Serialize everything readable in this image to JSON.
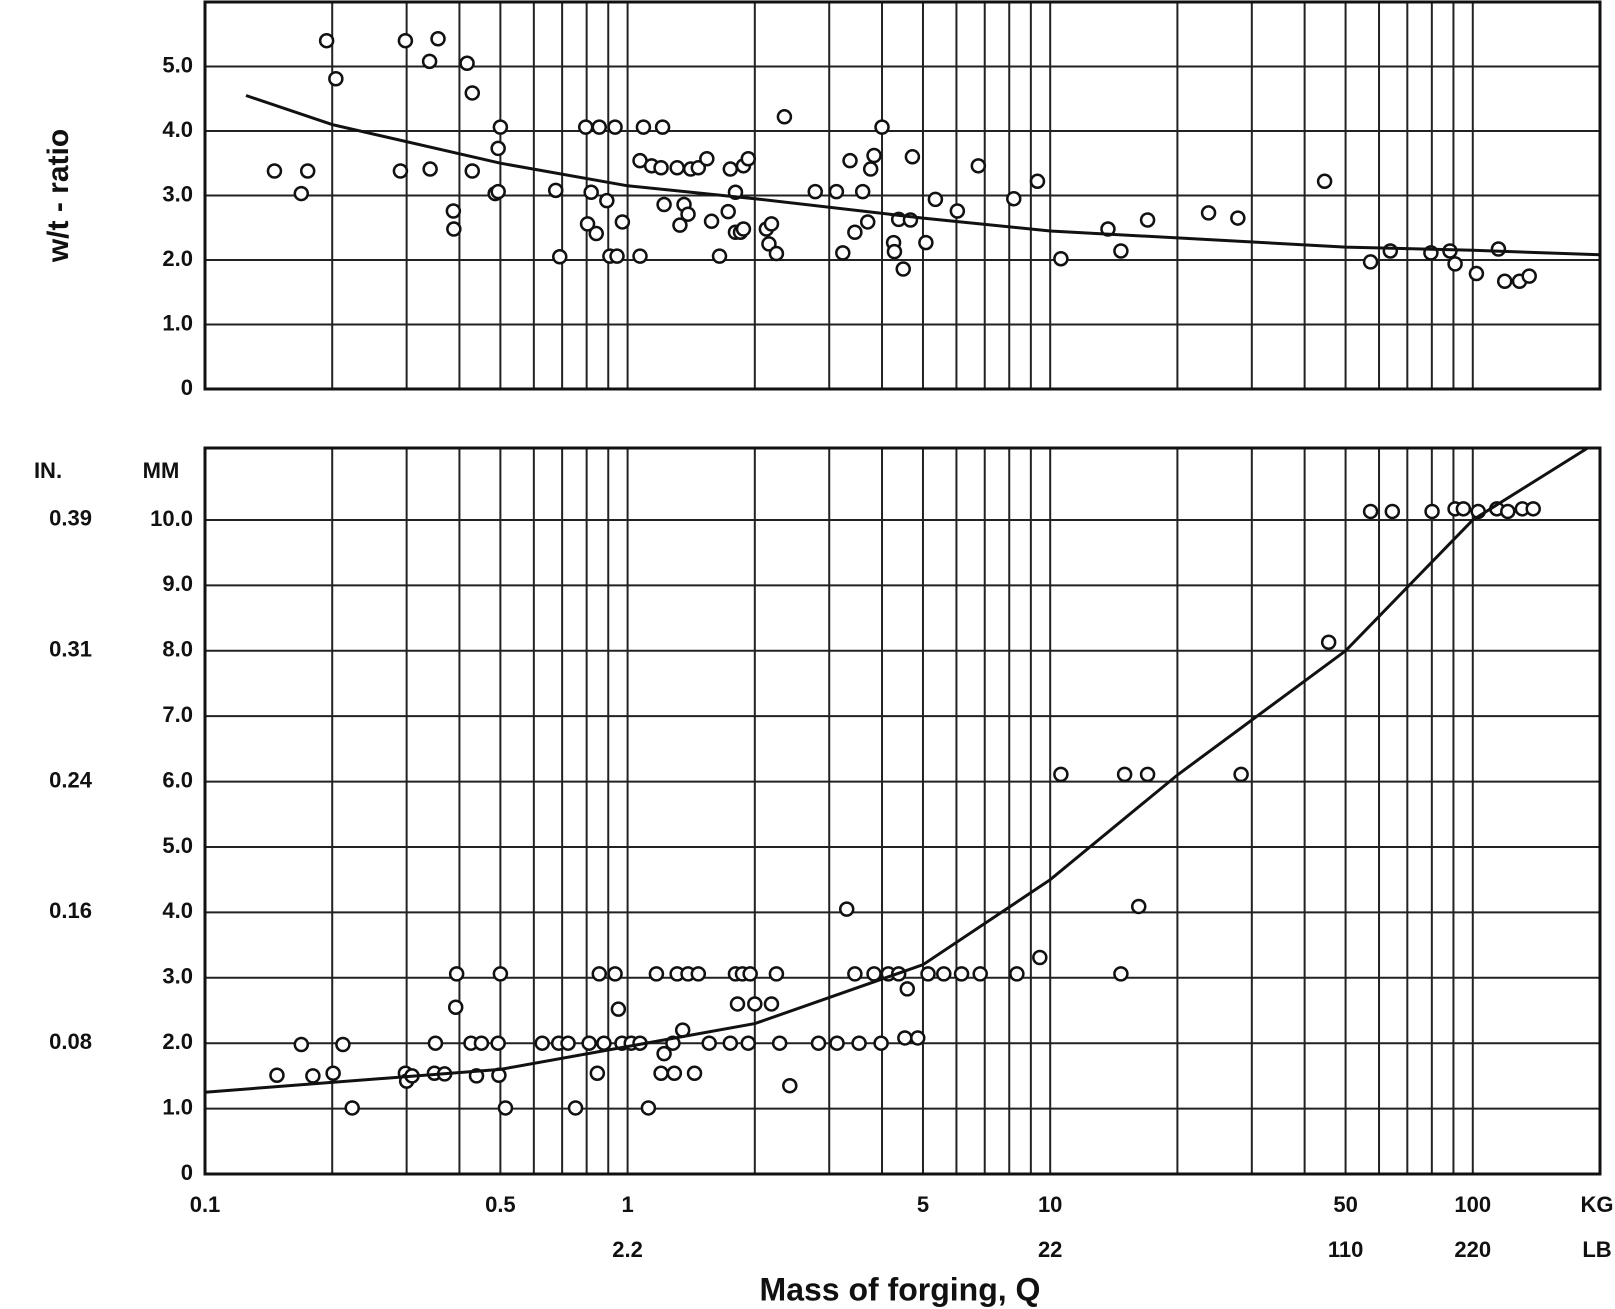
{
  "chart_data": [
    {
      "type": "scatter",
      "y_label": "w/t - ratio",
      "x_log": true,
      "grid": true,
      "xlim": [
        0.1,
        200
      ],
      "ylim": [
        0,
        6
      ],
      "yticks": [
        0,
        {
          "value": 1,
          "label": "1.0"
        },
        {
          "value": 2,
          "label": "2.0"
        },
        {
          "value": 3,
          "label": "3.0"
        },
        {
          "value": 4,
          "label": "4.0"
        },
        {
          "value": 5,
          "label": "5.0"
        }
      ],
      "xgrid": [
        0.2,
        0.3,
        0.4,
        0.5,
        0.6,
        0.7,
        0.8,
        0.9,
        1,
        2,
        3,
        4,
        5,
        6,
        7,
        8,
        9,
        10,
        20,
        30,
        40,
        50,
        60,
        70,
        80,
        90,
        100
      ],
      "series": [
        {
          "style": "marker",
          "color": "#111",
          "x": [
            0.146,
            0.169,
            0.175,
            0.194,
            0.204,
            0.29,
            0.298,
            0.34,
            0.341,
            0.356,
            0.387,
            0.388,
            0.417,
            0.429,
            0.429,
            0.486,
            0.494,
            0.5,
            0.494,
            0.676,
            0.691,
            0.796,
            0.82,
            0.804,
            0.843,
            0.857,
            0.893,
            0.908,
            0.934,
            0.944,
            0.972,
            1.07,
            1.09,
            1.07,
            1.14,
            1.21,
            1.2,
            1.22,
            1.31,
            1.33,
            1.36,
            1.39,
            1.41,
            1.47,
            1.54,
            1.58,
            1.65,
            1.73,
            1.75,
            1.8,
            1.8,
            1.85,
            1.88,
            1.93,
            1.88,
            2.13,
            2.19,
            2.16,
            2.25,
            2.35,
            2.78,
            3.12,
            3.23,
            3.36,
            3.45,
            3.6,
            3.76,
            3.7,
            3.83,
            4.0,
            4.26,
            4.28,
            4.38,
            4.49,
            4.67,
            4.72,
            5.08,
            5.35,
            6.03,
            6.76,
            8.2,
            9.33,
            10.6,
            13.7,
            14.7,
            17.0,
            23.7,
            27.8,
            44.6,
            57.3,
            63.8,
            79.6,
            88.3,
            90.8,
            102,
            115,
            119,
            129,
            136
          ],
          "values": [
            3.38,
            3.03,
            3.38,
            5.4,
            4.81,
            3.38,
            5.4,
            5.08,
            3.41,
            5.43,
            2.76,
            2.48,
            5.05,
            4.59,
            3.38,
            3.03,
            3.73,
            4.06,
            3.06,
            3.08,
            2.05,
            4.06,
            3.05,
            2.56,
            2.41,
            4.06,
            2.92,
            2.06,
            4.06,
            2.06,
            2.59,
            2.06,
            4.06,
            3.54,
            3.46,
            4.06,
            3.43,
            2.86,
            3.43,
            2.54,
            2.86,
            2.71,
            3.41,
            3.43,
            3.57,
            2.6,
            2.06,
            2.75,
            3.41,
            3.05,
            2.43,
            2.43,
            3.46,
            3.57,
            2.48,
            2.48,
            2.56,
            2.25,
            2.1,
            4.22,
            3.06,
            3.06,
            2.11,
            3.54,
            2.43,
            3.06,
            3.41,
            2.59,
            3.62,
            4.06,
            2.27,
            2.13,
            2.63,
            1.86,
            2.62,
            3.6,
            2.27,
            2.94,
            2.76,
            3.46,
            2.95,
            3.22,
            2.02,
            2.48,
            2.14,
            2.62,
            2.73,
            2.65,
            3.22,
            1.97,
            2.14,
            2.11,
            2.14,
            1.94,
            1.79,
            2.17,
            1.67,
            1.67,
            1.75
          ]
        },
        {
          "style": "line",
          "color": "#111",
          "x": [
            0.125,
            0.2,
            0.5,
            1,
            2,
            5,
            10,
            50,
            100,
            200
          ],
          "values": [
            4.55,
            4.1,
            3.5,
            3.15,
            2.95,
            2.65,
            2.45,
            2.2,
            2.15,
            2.08
          ]
        }
      ]
    },
    {
      "type": "scatter",
      "x_log": true,
      "grid": true,
      "y_units": [
        "IN.",
        "MM"
      ],
      "xlim": [
        0.1,
        200
      ],
      "ylim": [
        0,
        11.1
      ],
      "y2lim": [
        0,
        0.437
      ],
      "yticks": [
        0,
        {
          "value": 1,
          "label": "1.0"
        },
        {
          "value": 2,
          "label": "2.0"
        },
        {
          "value": 3,
          "label": "3.0"
        },
        {
          "value": 4,
          "label": "4.0"
        },
        {
          "value": 5,
          "label": "5.0"
        },
        {
          "value": 6,
          "label": "6.0"
        },
        {
          "value": 7,
          "label": "7.0"
        },
        {
          "value": 8,
          "label": "8.0"
        },
        {
          "value": 9,
          "label": "9.0"
        },
        {
          "value": 10,
          "label": "10.0"
        }
      ],
      "y2ticks": [
        {
          "value": 0.0787,
          "label": "0.08"
        },
        {
          "value": 0.1575,
          "label": "0.16"
        },
        {
          "value": 0.2362,
          "label": "0.24"
        },
        {
          "value": 0.315,
          "label": "0.31"
        },
        {
          "value": 0.3937,
          "label": "0.39"
        }
      ],
      "xticks": [
        0.1,
        0.5,
        1,
        5,
        10,
        50,
        100
      ],
      "x2ticks": [
        {
          "value": 1,
          "label": "2.2"
        },
        {
          "value": 10,
          "label": "22"
        },
        {
          "value": 50,
          "label": "110"
        },
        {
          "value": 100,
          "label": "220"
        }
      ],
      "x_units": [
        "KG",
        "LB"
      ],
      "x_label": "Mass of forging, Q",
      "xgrid": [
        0.2,
        0.3,
        0.4,
        0.5,
        0.6,
        0.7,
        0.8,
        0.9,
        1,
        2,
        3,
        4,
        5,
        6,
        7,
        8,
        9,
        10,
        20,
        30,
        40,
        50,
        60,
        70,
        80,
        90,
        100
      ],
      "series": [
        {
          "style": "marker",
          "color": "#111",
          "x": [
            0.148,
            0.169,
            0.18,
            0.201,
            0.212,
            0.223,
            0.298,
            0.3,
            0.309,
            0.349,
            0.351,
            0.369,
            0.392,
            0.394,
            0.426,
            0.439,
            0.451,
            0.494,
            0.496,
            0.5,
            0.514,
            0.628,
            0.687,
            0.723,
            0.753,
            0.811,
            0.848,
            0.857,
            0.879,
            0.934,
            0.951,
            0.97,
            1.02,
            1.07,
            1.12,
            1.17,
            1.2,
            1.22,
            1.28,
            1.29,
            1.31,
            1.35,
            1.39,
            1.44,
            1.47,
            1.56,
            1.75,
            1.8,
            1.82,
            1.87,
            1.93,
            1.95,
            2.0,
            2.19,
            2.25,
            2.29,
            2.42,
            2.83,
            3.13,
            3.3,
            3.45,
            3.53,
            3.83,
            3.98,
            4.14,
            4.38,
            4.59,
            4.53,
            4.86,
            5.14,
            5.6,
            6.17,
            6.83,
            8.34,
            9.45,
            10.6,
            14.7,
            15.0,
            16.2,
            17.0,
            28.3,
            45.6,
            57.3,
            64.5,
            80.1,
            90.8,
            95.0,
            103,
            114,
            121,
            131,
            139
          ],
          "values": [
            1.51,
            1.98,
            1.5,
            1.54,
            1.98,
            1.01,
            1.54,
            1.42,
            1.5,
            1.54,
            2.0,
            1.53,
            2.55,
            3.06,
            2.0,
            1.5,
            2.0,
            2.0,
            1.51,
            3.06,
            1.01,
            2.0,
            2.0,
            2.0,
            1.01,
            2.0,
            1.54,
            3.06,
            2.0,
            3.06,
            2.52,
            2.0,
            2.0,
            2.0,
            1.01,
            3.06,
            1.54,
            1.84,
            2.0,
            1.54,
            3.06,
            2.2,
            3.06,
            1.54,
            3.06,
            2.0,
            2.0,
            3.06,
            2.6,
            3.06,
            2.0,
            3.06,
            2.6,
            2.6,
            3.06,
            2.0,
            1.35,
            2.0,
            2.0,
            4.05,
            3.06,
            2.0,
            3.06,
            2.0,
            3.06,
            3.06,
            2.83,
            2.08,
            2.08,
            3.06,
            3.06,
            3.06,
            3.06,
            3.06,
            3.31,
            6.11,
            3.06,
            6.11,
            4.09,
            6.11,
            6.11,
            8.13,
            10.13,
            10.13,
            10.13,
            10.17,
            10.17,
            10.13,
            10.17,
            10.13,
            10.17,
            10.17
          ]
        },
        {
          "style": "line",
          "color": "#111",
          "x": [
            0.1,
            0.5,
            1,
            2,
            5,
            10,
            20,
            50,
            100,
            187
          ],
          "values": [
            1.25,
            1.6,
            1.95,
            2.3,
            3.2,
            4.5,
            6.1,
            8.0,
            10.0,
            11.1
          ]
        }
      ]
    }
  ]
}
